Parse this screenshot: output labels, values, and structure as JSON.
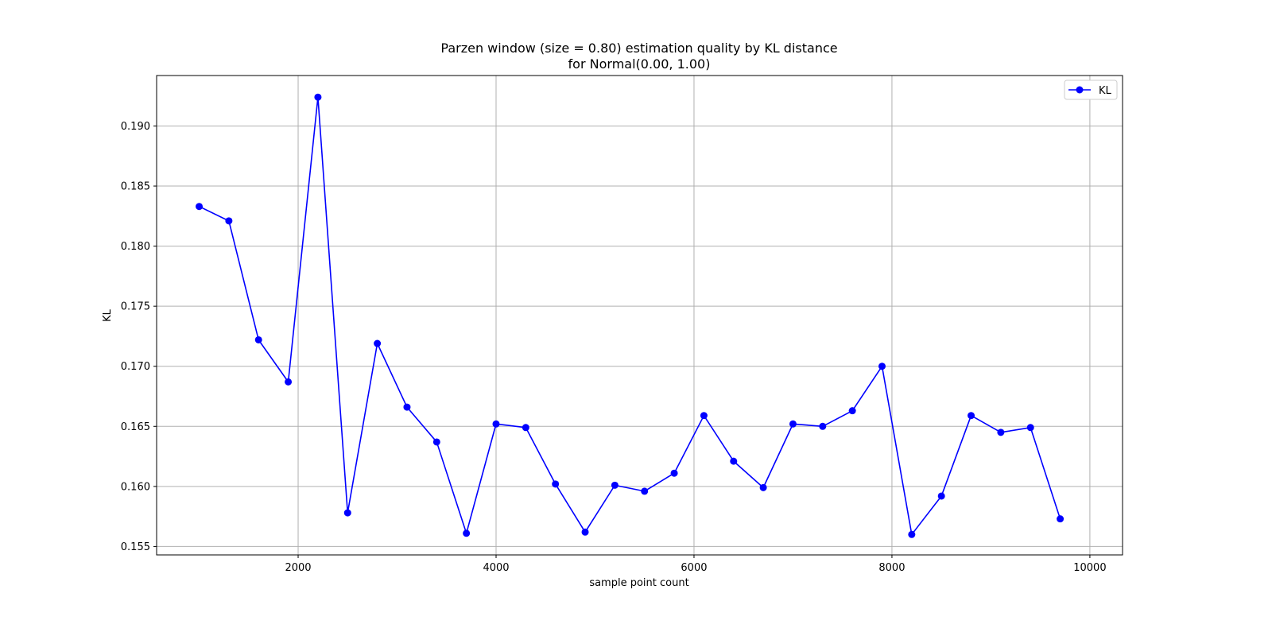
{
  "chart_data": {
    "type": "line",
    "title": "Parzen window (size = 0.80) estimation quality by KL distance",
    "subtitle": "for Normal(0.00, 1.00)",
    "xlabel": "sample point count",
    "ylabel": "KL",
    "xlim": [
      570,
      10330
    ],
    "ylim": [
      0.1543,
      0.1942
    ],
    "x_ticks": [
      2000,
      4000,
      6000,
      8000,
      10000
    ],
    "x_tick_labels": [
      "2000",
      "4000",
      "6000",
      "8000",
      "10000"
    ],
    "y_ticks": [
      0.155,
      0.16,
      0.165,
      0.17,
      0.175,
      0.18,
      0.185,
      0.19
    ],
    "y_tick_labels": [
      "0.155",
      "0.160",
      "0.165",
      "0.170",
      "0.175",
      "0.180",
      "0.185",
      "0.190"
    ],
    "grid": true,
    "legend_position": "top-right",
    "series": [
      {
        "name": "KL",
        "color": "#0000ff",
        "marker": "circle",
        "x": [
          1000,
          1300,
          1600,
          1900,
          2200,
          2500,
          2800,
          3100,
          3400,
          3700,
          4000,
          4300,
          4600,
          4900,
          5200,
          5500,
          5800,
          6100,
          6400,
          6700,
          7000,
          7300,
          7600,
          7900,
          8200,
          8500,
          8800,
          9100,
          9400,
          9700
        ],
        "values": [
          0.1833,
          0.1821,
          0.1722,
          0.1687,
          0.1924,
          0.1578,
          0.1719,
          0.1666,
          0.1637,
          0.1561,
          0.1652,
          0.1649,
          0.1602,
          0.1562,
          0.1601,
          0.1596,
          0.1611,
          0.1659,
          0.1621,
          0.1599,
          0.1652,
          0.165,
          0.1663,
          0.17,
          0.156,
          0.1592,
          0.1659,
          0.1645,
          0.1649,
          0.1573
        ]
      }
    ]
  }
}
